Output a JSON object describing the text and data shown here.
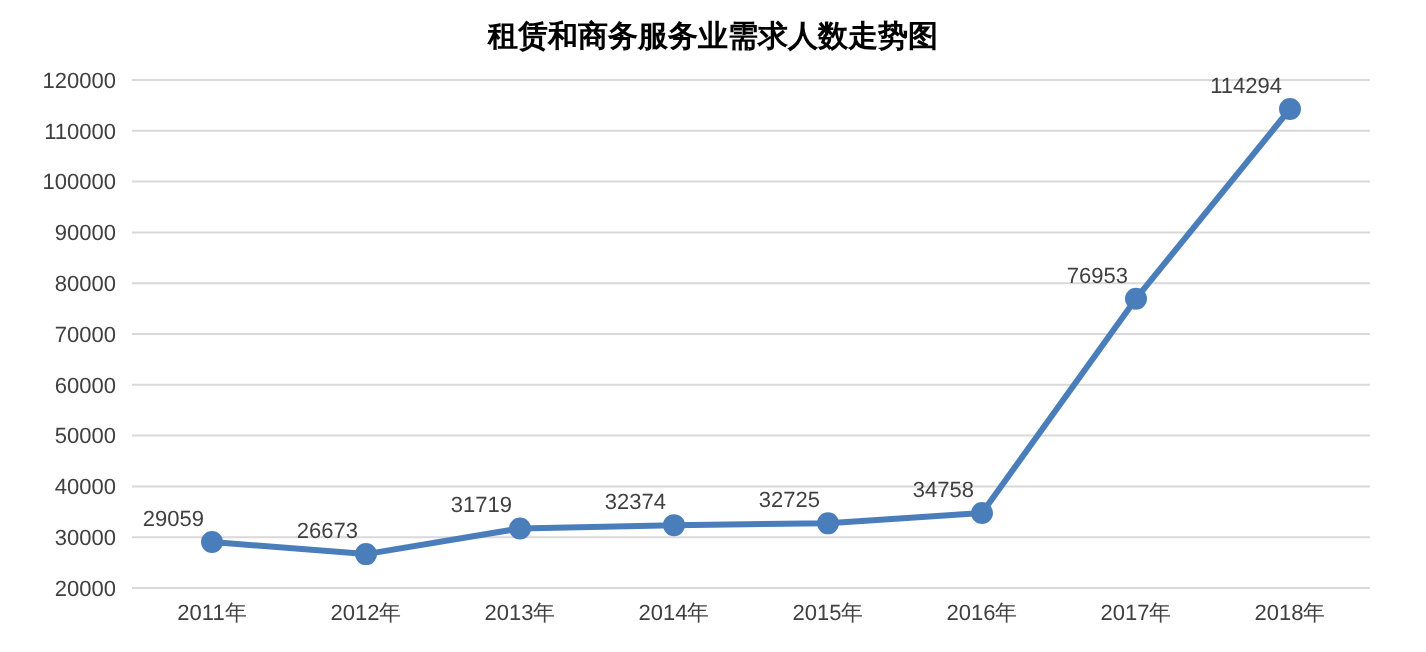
{
  "chart_data": {
    "type": "line",
    "title": "租赁和商务服务业需求人数走势图",
    "categories": [
      "2011年",
      "2012年",
      "2013年",
      "2014年",
      "2015年",
      "2016年",
      "2017年",
      "2018年"
    ],
    "series": [
      {
        "color": "#4a7ebb",
        "values": [
          29059,
          26673,
          31719,
          32374,
          32725,
          34758,
          76953,
          114294
        ]
      }
    ],
    "ylim": [
      20000,
      120000
    ],
    "yticks": [
      20000,
      30000,
      40000,
      50000,
      60000,
      70000,
      80000,
      90000,
      100000,
      110000,
      120000
    ],
    "grid": "y",
    "marker": "circle",
    "data_labels": true,
    "legend": false
  }
}
